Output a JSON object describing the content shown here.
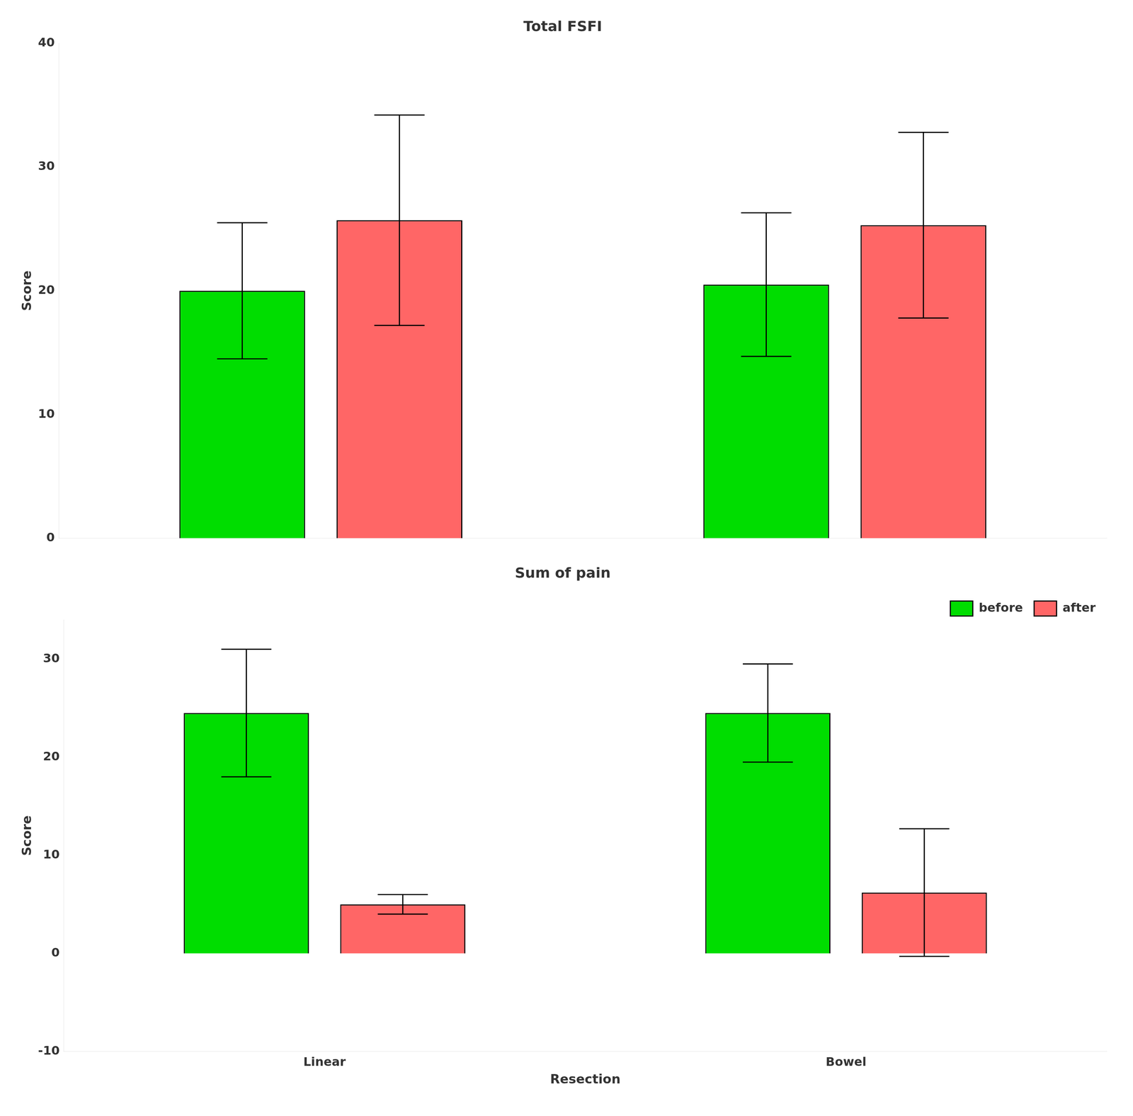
{
  "chart_data": [
    {
      "type": "bar",
      "title": "Total FSFI",
      "ylabel": "Score",
      "categories": [
        "Linear",
        "Bowel"
      ],
      "series": [
        {
          "color": "#00DD00",
          "values": [
            20.0,
            20.5
          ],
          "errors": [
            5.5,
            5.8
          ]
        },
        {
          "color": "#FF6666",
          "values": [
            25.7,
            25.3
          ],
          "errors": [
            8.5,
            7.5
          ]
        }
      ],
      "ylim": [
        0,
        40
      ],
      "yticks": [
        0,
        10,
        20,
        30,
        40
      ],
      "grid": false,
      "tick_labels": "y"
    },
    {
      "type": "bar",
      "title": "Sum of pain",
      "ylabel": "Score",
      "xlabel": "Resection",
      "categories": [
        "Linear",
        "Bowel"
      ],
      "series": [
        {
          "name": "before",
          "color": "#00DD00",
          "values": [
            24.5,
            24.5
          ],
          "errors": [
            6.5,
            5.0
          ]
        },
        {
          "name": "after",
          "color": "#FF6666",
          "values": [
            5.0,
            6.2
          ],
          "errors": [
            1.0,
            6.5
          ]
        }
      ],
      "ylim": [
        -10,
        34
      ],
      "yticks": [
        -10,
        0,
        10,
        20,
        30
      ],
      "grid": false,
      "legend": "upper right"
    }
  ]
}
